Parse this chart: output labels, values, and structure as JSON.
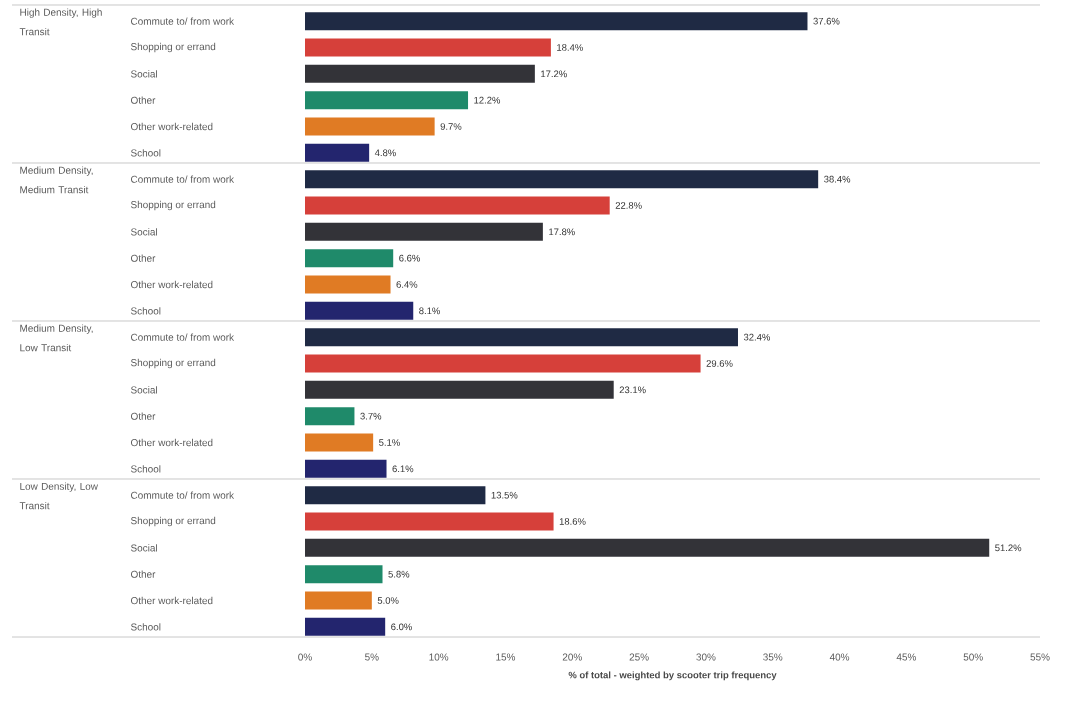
{
  "chart_data": [
    {
      "type": "bar",
      "orientation": "horizontal",
      "ylabel": "High Density, High Transit",
      "tick_labels": "y",
      "xlim": [
        0,
        55
      ],
      "categories": [
        "Commute to/ from work",
        "Shopping or errand",
        "Social",
        "Other",
        "Other work-related",
        "School"
      ],
      "values": [
        37.6,
        18.4,
        17.2,
        12.2,
        9.7,
        4.8
      ],
      "value_labels": [
        "37.6%",
        "18.4%",
        "17.2%",
        "12.2%",
        "9.7%",
        "4.8%"
      ],
      "colors": [
        "#1f2a44",
        "#d6403a",
        "#333338",
        "#1f8a6a",
        "#e07b24",
        "#23256e"
      ]
    },
    {
      "type": "bar",
      "orientation": "horizontal",
      "ylabel": "Medium Density, Medium Transit",
      "tick_labels": "y",
      "xlim": [
        0,
        55
      ],
      "categories": [
        "Commute to/ from work",
        "Shopping or errand",
        "Social",
        "Other",
        "Other work-related",
        "School"
      ],
      "values": [
        38.4,
        22.8,
        17.8,
        6.6,
        6.4,
        8.1
      ],
      "value_labels": [
        "38.4%",
        "22.8%",
        "17.8%",
        "6.6%",
        "6.4%",
        "8.1%"
      ],
      "colors": [
        "#1f2a44",
        "#d6403a",
        "#333338",
        "#1f8a6a",
        "#e07b24",
        "#23256e"
      ]
    },
    {
      "type": "bar",
      "orientation": "horizontal",
      "ylabel": "Medium Density, Low Transit",
      "tick_labels": "y",
      "xlim": [
        0,
        55
      ],
      "categories": [
        "Commute to/ from work",
        "Shopping or errand",
        "Social",
        "Other",
        "Other work-related",
        "School"
      ],
      "values": [
        32.4,
        29.6,
        23.1,
        3.7,
        5.1,
        6.1
      ],
      "value_labels": [
        "32.4%",
        "29.6%",
        "23.1%",
        "3.7%",
        "5.1%",
        "6.1%"
      ],
      "colors": [
        "#1f2a44",
        "#d6403a",
        "#333338",
        "#1f8a6a",
        "#e07b24",
        "#23256e"
      ]
    },
    {
      "type": "bar",
      "orientation": "horizontal",
      "ylabel": "Low Density, Low Transit",
      "xlabel": "% of total - weighted by scooter trip frequency",
      "xlim": [
        0,
        55
      ],
      "xticks": [
        {
          "value": 0,
          "label": "0%"
        },
        {
          "value": 5,
          "label": "5%"
        },
        {
          "value": 10,
          "label": "10%"
        },
        {
          "value": 15,
          "label": "15%"
        },
        {
          "value": 20,
          "label": "20%"
        },
        {
          "value": 25,
          "label": "25%"
        },
        {
          "value": 30,
          "label": "30%"
        },
        {
          "value": 35,
          "label": "35%"
        },
        {
          "value": 40,
          "label": "40%"
        },
        {
          "value": 45,
          "label": "45%"
        },
        {
          "value": 50,
          "label": "50%"
        },
        {
          "value": 55,
          "label": "55%"
        }
      ],
      "categories": [
        "Commute to/ from work",
        "Shopping or errand",
        "Social",
        "Other",
        "Other work-related",
        "School"
      ],
      "values": [
        13.5,
        18.6,
        51.2,
        5.8,
        5.0,
        6.0
      ],
      "value_labels": [
        "13.5%",
        "18.6%",
        "51.2%",
        "5.8%",
        "5.0%",
        "6.0%"
      ],
      "colors": [
        "#1f2a44",
        "#d6403a",
        "#333338",
        "#1f8a6a",
        "#e07b24",
        "#23256e"
      ]
    }
  ]
}
